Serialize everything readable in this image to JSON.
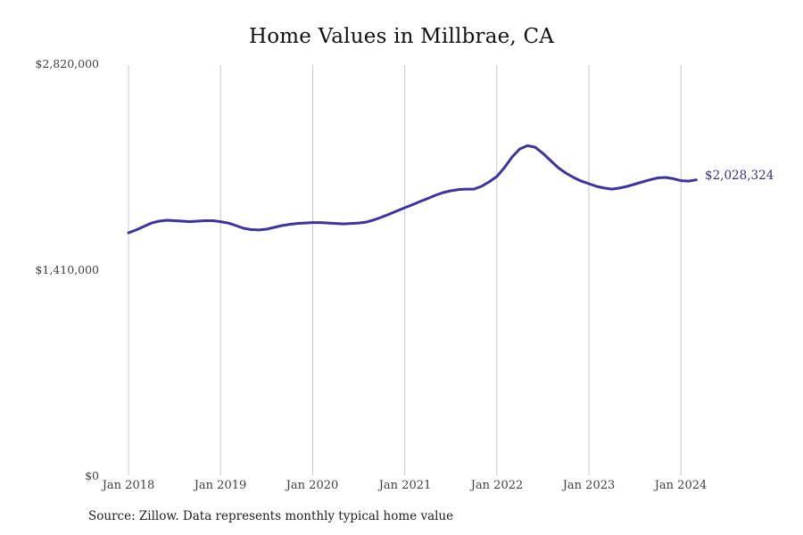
{
  "page": {
    "title": "Home Values in Millbrae, CA",
    "source_note": "Source: Zillow. Data represents monthly typical home value"
  },
  "chart_data": {
    "type": "line",
    "title": "Home Values in Millbrae, CA",
    "xlabel": "",
    "ylabel": "Typical home value ($)",
    "ylim": [
      0,
      2820000
    ],
    "grid": "vertical-only",
    "legend": "none",
    "end_label": "$2,028,324",
    "end_value": 2028324,
    "x": [
      "Jan 2018",
      "Feb 2018",
      "Mar 2018",
      "Apr 2018",
      "May 2018",
      "Jun 2018",
      "Jul 2018",
      "Aug 2018",
      "Sep 2018",
      "Oct 2018",
      "Nov 2018",
      "Dec 2018",
      "Jan 2019",
      "Feb 2019",
      "Mar 2019",
      "Apr 2019",
      "May 2019",
      "Jun 2019",
      "Jul 2019",
      "Aug 2019",
      "Sep 2019",
      "Oct 2019",
      "Nov 2019",
      "Dec 2019",
      "Jan 2020",
      "Feb 2020",
      "Mar 2020",
      "Apr 2020",
      "May 2020",
      "Jun 2020",
      "Jul 2020",
      "Aug 2020",
      "Sep 2020",
      "Oct 2020",
      "Nov 2020",
      "Dec 2020",
      "Jan 2021",
      "Feb 2021",
      "Mar 2021",
      "Apr 2021",
      "May 2021",
      "Jun 2021",
      "Jul 2021",
      "Aug 2021",
      "Sep 2021",
      "Oct 2021",
      "Nov 2021",
      "Dec 2021",
      "Jan 2022",
      "Feb 2022",
      "Mar 2022",
      "Apr 2022",
      "May 2022",
      "Jun 2022",
      "Jul 2022",
      "Aug 2022",
      "Sep 2022",
      "Oct 2022",
      "Nov 2022",
      "Dec 2022",
      "Jan 2023",
      "Feb 2023",
      "Mar 2023",
      "Apr 2023",
      "May 2023",
      "Jun 2023",
      "Jul 2023",
      "Aug 2023",
      "Sep 2023",
      "Oct 2023",
      "Nov 2023",
      "Dec 2023",
      "Jan 2024",
      "Feb 2024",
      "Mar 2024"
    ],
    "series": [
      {
        "name": "Monthly typical home value",
        "values": [
          1666000,
          1685000,
          1709000,
          1733000,
          1746000,
          1752000,
          1749000,
          1746000,
          1742000,
          1746000,
          1749000,
          1749000,
          1742000,
          1733000,
          1715000,
          1697000,
          1688000,
          1685000,
          1691000,
          1703000,
          1715000,
          1724000,
          1730000,
          1733000,
          1736000,
          1736000,
          1733000,
          1730000,
          1727000,
          1730000,
          1733000,
          1739000,
          1754000,
          1773000,
          1794000,
          1816000,
          1837000,
          1858000,
          1880000,
          1901000,
          1923000,
          1941000,
          1953000,
          1962000,
          1965000,
          1965000,
          1984000,
          2014000,
          2051000,
          2112000,
          2185000,
          2240000,
          2262000,
          2252000,
          2210000,
          2161000,
          2112000,
          2075000,
          2045000,
          2020000,
          2002000,
          1984000,
          1972000,
          1965000,
          1972000,
          1984000,
          1999000,
          2014000,
          2029000,
          2042000,
          2045000,
          2036000,
          2023000,
          2020000,
          2028324
        ]
      }
    ],
    "x_tick_labels": [
      "Jan 2018",
      "Jan 2019",
      "Jan 2020",
      "Jan 2021",
      "Jan 2022",
      "Jan 2023",
      "Jan 2024"
    ],
    "x_tick_month_indices": [
      0,
      12,
      24,
      36,
      48,
      60,
      72
    ],
    "y_tick_labels": [
      "$2,820,000",
      "$1,410,000",
      "$0"
    ],
    "y_tick_values": [
      2820000,
      1410000,
      0
    ],
    "colors": {
      "line": "#3c35a0",
      "end_label": "#2f3184",
      "gridline": "#c9c9c9",
      "axis_text": "#3f3f3f",
      "title_text": "#111111"
    }
  }
}
